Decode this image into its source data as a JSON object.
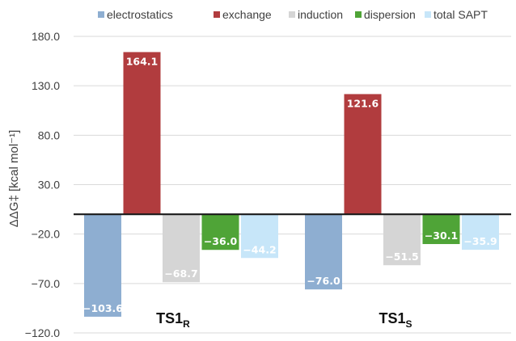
{
  "chart_data": {
    "type": "bar",
    "categories": [
      {
        "main": "TS1",
        "sub": "R"
      },
      {
        "main": "TS1",
        "sub": "S"
      }
    ],
    "ylabel": "ΔΔG‡ [kcal mol⁻¹]",
    "ylim": [
      -120.0,
      180.0
    ],
    "ytick_labels": [
      "180.0",
      "130.0",
      "80.0",
      "30.0",
      "−20.0",
      "−70.0",
      "−120.0"
    ],
    "ytick_values": [
      180,
      130,
      80,
      30,
      -20,
      -70,
      -120
    ],
    "legend_position": "top",
    "grid": "horizontal",
    "series": [
      {
        "name": "electrostatics",
        "color": "#8eaed1",
        "values": [
          -103.6,
          -76.0
        ],
        "labels": [
          "−103.6",
          "−76.0"
        ]
      },
      {
        "name": "exchange",
        "color": "#b13c3e",
        "values": [
          164.1,
          121.6
        ],
        "labels": [
          "164.1",
          "121.6"
        ]
      },
      {
        "name": "induction",
        "color": "#d5d5d5",
        "values": [
          -68.7,
          -51.5
        ],
        "labels": [
          "−68.7",
          "−51.5"
        ]
      },
      {
        "name": "dispersion",
        "color": "#4fa437",
        "values": [
          -36.0,
          -30.1
        ],
        "labels": [
          "−36.0",
          "−30.1"
        ]
      },
      {
        "name": "total SAPT",
        "color": "#c7e6f9",
        "values": [
          -44.2,
          -35.9
        ],
        "labels": [
          "−44.2",
          "−35.9"
        ]
      }
    ]
  }
}
